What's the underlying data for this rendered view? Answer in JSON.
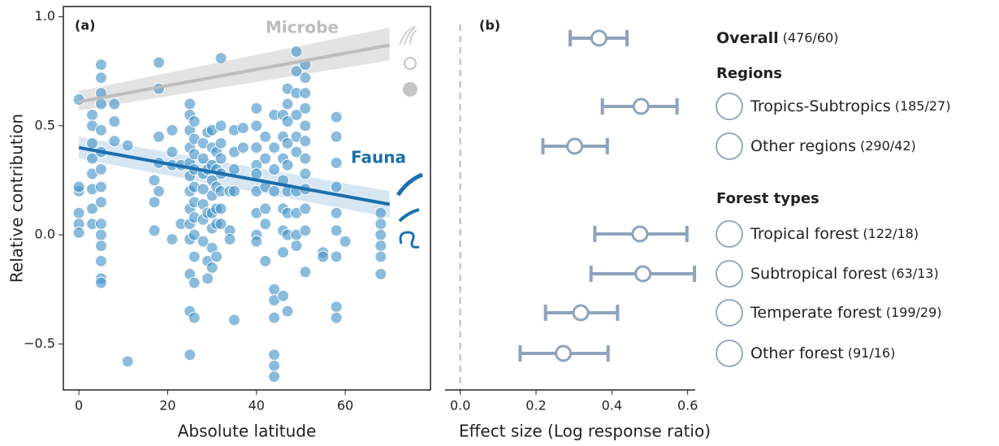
{
  "chart_data": [
    {
      "type": "scatter",
      "panel_label": "(a)",
      "xlabel": "Absolute latitude",
      "ylabel": "Relative contribution",
      "xlim": [
        -3.5,
        79.2
      ],
      "ylim": [
        -0.711,
        1.047
      ],
      "xticks": [
        0,
        20,
        40,
        60
      ],
      "yticks": [
        {
          "value": -0.5,
          "label": "−0.5"
        },
        {
          "value": 0,
          "label": "0.0"
        },
        0.5,
        {
          "value": 1,
          "label": "1.0"
        }
      ],
      "series": [
        {
          "color": "#3d8fc6",
          "x": [
            0,
            0,
            0,
            0,
            0,
            0,
            3,
            3,
            3,
            3,
            3,
            3,
            3,
            3,
            5,
            5,
            5,
            5,
            5,
            5,
            5,
            5,
            5,
            5,
            5,
            5,
            5,
            5,
            5,
            8,
            8,
            8,
            11,
            11,
            17,
            17,
            17,
            18,
            18,
            18,
            18,
            18,
            21,
            21,
            21,
            21,
            23,
            23,
            25,
            25,
            25,
            25,
            25,
            25,
            25,
            25,
            25,
            25,
            25,
            25,
            25,
            26,
            26,
            26,
            26,
            26,
            26,
            26,
            26,
            26,
            26,
            26,
            28,
            28,
            28,
            28,
            28,
            28,
            28,
            29,
            29,
            29,
            29,
            29,
            30,
            30,
            30,
            30,
            30,
            30,
            30,
            30,
            30,
            31,
            31,
            31,
            31,
            31,
            31,
            32,
            32,
            32,
            32,
            32,
            32,
            32,
            32,
            34,
            34,
            34,
            35,
            35,
            35,
            35,
            35,
            37,
            37,
            40,
            40,
            40,
            40,
            40,
            40,
            40,
            40,
            40,
            42,
            42,
            42,
            42,
            42,
            42,
            44,
            44,
            44,
            44,
            44,
            44,
            44,
            44,
            44,
            44,
            46,
            46,
            46,
            46,
            46,
            46,
            46,
            46,
            47,
            47,
            47,
            47,
            47,
            47,
            47,
            47,
            47,
            49,
            49,
            49,
            49,
            49,
            49,
            49,
            49,
            49,
            49,
            51,
            51,
            51,
            51,
            51,
            51,
            51,
            51,
            51,
            51,
            51,
            51,
            55,
            55,
            58,
            58,
            58,
            58,
            58,
            58,
            58,
            58,
            58,
            60,
            68,
            68,
            68,
            68,
            68,
            68
          ],
          "values": [
            0.62,
            0.2,
            0.1,
            0.05,
            0.01,
            0.22,
            0.55,
            0.5,
            0.42,
            0.35,
            0.28,
            0.21,
            0.12,
            0.05,
            0.78,
            0.72,
            0.65,
            0.6,
            0.48,
            0.38,
            0.3,
            0.22,
            0.15,
            0.05,
            0,
            -0.05,
            -0.12,
            -0.2,
            -0.22,
            0.6,
            0.52,
            0.43,
            -0.58,
            0.41,
            0.02,
            0.25,
            0.15,
            0.79,
            0.67,
            0.45,
            0.33,
            0.2,
            0.48,
            0.38,
            0.32,
            -0.02,
            0.32,
            0.05,
            0.6,
            0.55,
            0.48,
            0.4,
            0.33,
            0.27,
            0.2,
            0.12,
            0.05,
            -0.02,
            -0.18,
            -0.35,
            -0.55,
            0.52,
            0.44,
            0.37,
            0.3,
            0.22,
            0.15,
            0.08,
            0,
            -0.1,
            -0.22,
            -0.38,
            0.42,
            0.35,
            0.28,
            0.21,
            0.14,
            0.07,
            -0.03,
            0.47,
            0.3,
            0.1,
            -0.12,
            -0.2,
            0.48,
            0.4,
            0.32,
            0.25,
            0.18,
            0.1,
            0.03,
            -0.06,
            -0.15,
            0.38,
            0.3,
            0.22,
            0.12,
            0.05,
            -0.1,
            0.81,
            0.5,
            0.42,
            0.35,
            0.28,
            0.2,
            0.12,
            0.05,
            0.2,
            0.02,
            -0.02,
            0.48,
            0.38,
            0.3,
            0.2,
            -0.39,
            0.49,
            0.4,
            0.58,
            0.5,
            0.4,
            0.32,
            0.28,
            0.2,
            0.1,
            0,
            -0.03,
            0.45,
            0.35,
            0.22,
            0.12,
            0.05,
            -0.12,
            0.55,
            0.4,
            0.3,
            0.2,
            -0.25,
            -0.3,
            -0.38,
            -0.55,
            -0.6,
            -0.65,
            0.55,
            0.45,
            0.35,
            0.25,
            0.12,
            0.02,
            -0.08,
            -0.28,
            0.67,
            0.6,
            0.52,
            0.42,
            0.32,
            0.2,
            0.1,
            0,
            -0.35,
            0.84,
            0.75,
            0.65,
            0.55,
            0.45,
            0.38,
            0.2,
            0.1,
            0,
            -0.05,
            0.78,
            0.72,
            0.65,
            0.58,
            0.5,
            0.43,
            0.35,
            0.28,
            0.21,
            0.12,
            0.02,
            -0.17,
            -0.08,
            -0.1,
            0.54,
            0.45,
            0.33,
            0.22,
            0.1,
            0.02,
            -0.1,
            -0.33,
            -0.38,
            -0.03,
            0.1,
            0.05,
            0,
            -0.05,
            -0.1,
            -0.18
          ]
        }
      ],
      "fits": [
        {
          "name": "Microbe",
          "color": "#bdbdbd",
          "band_color": "#e3e3e3",
          "x": [
            0,
            70
          ],
          "values": [
            0.61,
            0.87
          ],
          "lower": [
            0.57,
            0.8
          ],
          "upper": [
            0.66,
            0.95
          ]
        },
        {
          "name": "Fauna",
          "color": "#1a6fae",
          "band_color": "#d6e6f3",
          "x": [
            0,
            70
          ],
          "values": [
            0.4,
            0.14
          ],
          "lower": [
            0.35,
            0.08
          ],
          "upper": [
            0.45,
            0.2
          ]
        }
      ]
    },
    {
      "type": "errorbar",
      "panel_label": "(b)",
      "xlabel": "Effect size (Log response ratio)",
      "xlim": [
        -0.04,
        0.62
      ],
      "xticks": [
        {
          "value": 0,
          "label": "0.0"
        },
        0.2,
        0.4,
        0.6
      ],
      "color": "#8ea3bd",
      "headers": [
        "Regions",
        "Forest types"
      ],
      "categories": [
        "Overall",
        "Tropics-Subtropics",
        "Other regions",
        "Tropical forest",
        "Subtropical forest",
        "Temperate forest",
        "Other forest"
      ],
      "counts": [
        "(476/60)",
        "(185/27)",
        "(290/42)",
        "(122/18)",
        "(63/13)",
        "(199/29)",
        "(91/16)"
      ],
      "values": [
        0.366,
        0.477,
        0.302,
        0.474,
        0.482,
        0.318,
        0.272
      ],
      "lower": [
        0.29,
        0.375,
        0.218,
        0.355,
        0.345,
        0.225,
        0.158
      ],
      "upper": [
        0.44,
        0.572,
        0.388,
        0.598,
        0.618,
        0.415,
        0.39
      ]
    }
  ]
}
